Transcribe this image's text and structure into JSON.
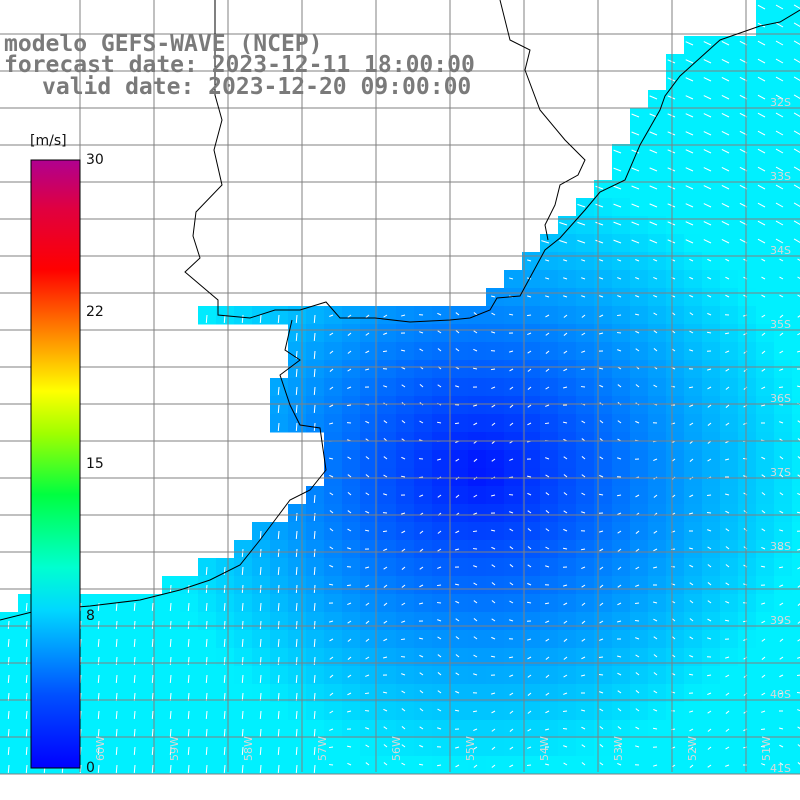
{
  "title": {
    "line1": "modelo GEFS-WAVE (NCEP)",
    "line2": "forecast date: 2023-12-11 18:00:00",
    "line3": "valid date: 2023-12-20 09:00:00"
  },
  "colorbar": {
    "unit": "[m/s]",
    "ticks": [
      "30",
      "22",
      "15",
      "8",
      "0"
    ],
    "tick_values": [
      30,
      22,
      15,
      8,
      0
    ],
    "colors": [
      "#0000ff",
      "#00a0ff",
      "#00ffff",
      "#00ff00",
      "#ffff00",
      "#ff8000",
      "#ff0000",
      "#d00060",
      "#b00080"
    ]
  },
  "map": {
    "lat_labels": [
      "32S",
      "33S",
      "34S",
      "35S",
      "36S",
      "37S",
      "38S",
      "39S",
      "40S",
      "41S"
    ],
    "lon_labels": [
      "60W",
      "59W",
      "58W",
      "57W",
      "56W",
      "55W",
      "54W",
      "53W",
      "52W",
      "51W"
    ],
    "land_color": "#ffffff",
    "grid_color": "#808080",
    "vector_color": "#ffffff"
  }
}
